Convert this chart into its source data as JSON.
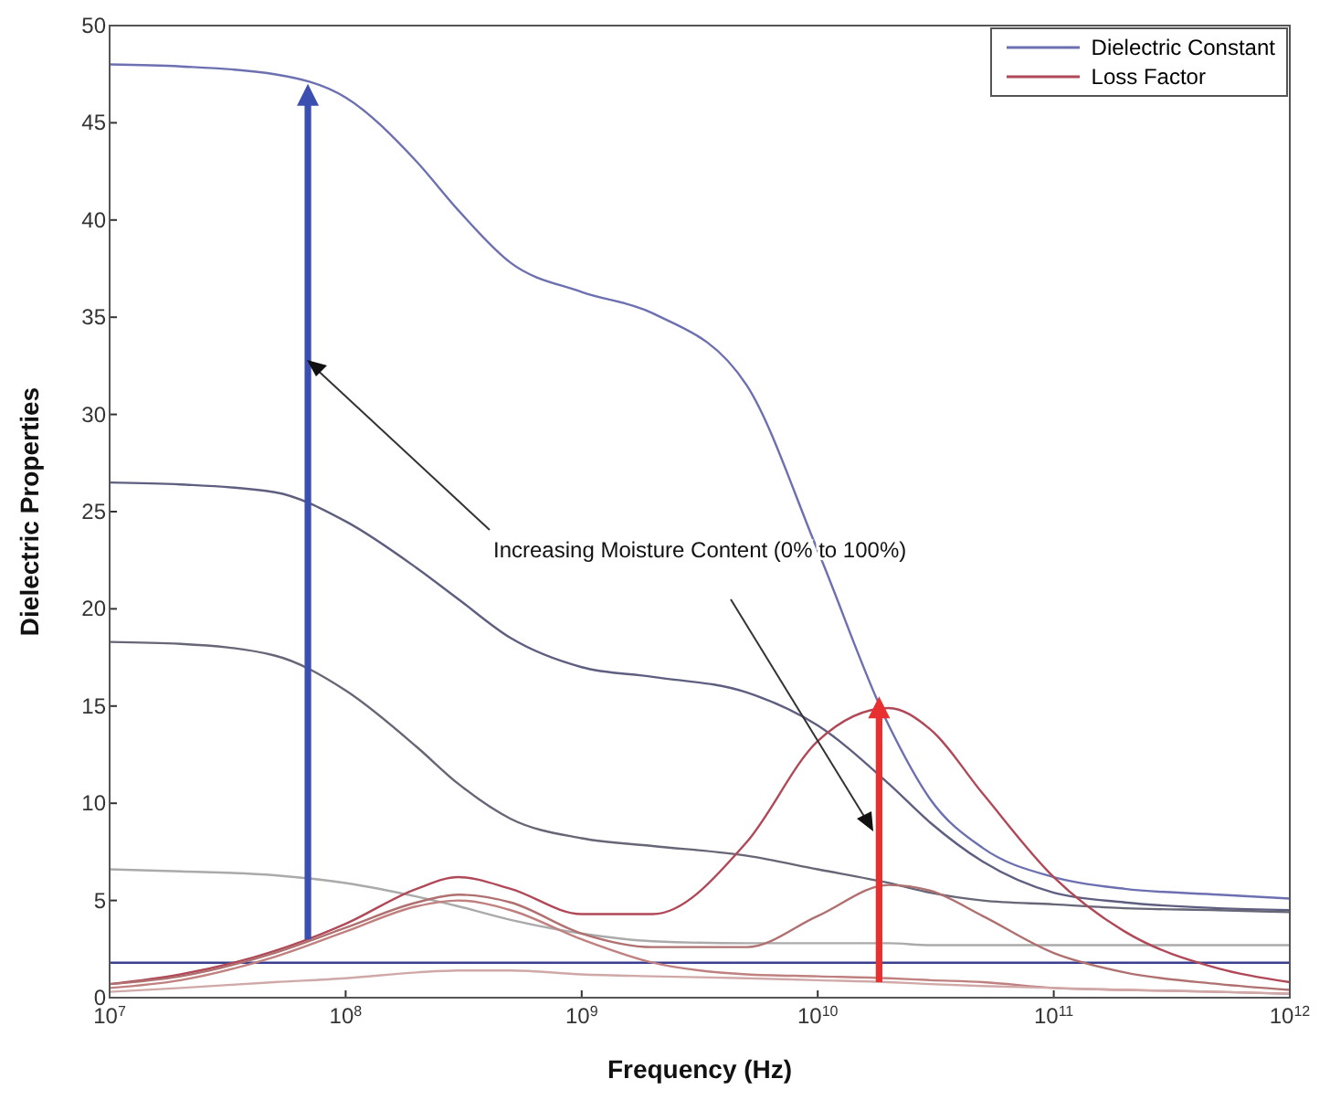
{
  "chart_data": {
    "type": "line",
    "xlabel": "Frequency (Hz)",
    "ylabel": "Dielectric Properties",
    "x": [
      10000000,
      20000000,
      50000000,
      100000000,
      200000000,
      300000000,
      500000000,
      1000000000,
      2000000000,
      5000000000,
      10000000000,
      20000000000,
      30000000000,
      50000000000,
      100000000000,
      200000000000,
      500000000000,
      1000000000000
    ],
    "series": [
      {
        "name": "Dielectric Constant",
        "color": "#6c70b0",
        "values": [
          48,
          47.9,
          47.5,
          46.3,
          43,
          40.5,
          37.8,
          36.3,
          35.2,
          31.5,
          23,
          14,
          10.2,
          7.7,
          6.2,
          5.6,
          5.3,
          5.1
        ]
      },
      {
        "color": "#5e5f80",
        "values": [
          26.5,
          26.4,
          26,
          24.5,
          22.1,
          20.5,
          18.5,
          17,
          16.5,
          15.7,
          14,
          11,
          9,
          7,
          5.4,
          4.9,
          4.6,
          4.5
        ]
      },
      {
        "color": "#666677",
        "values": [
          18.3,
          18.2,
          17.6,
          15.8,
          12.9,
          11,
          9.2,
          8.2,
          7.8,
          7.3,
          6.6,
          5.9,
          5.4,
          5,
          4.8,
          4.6,
          4.5,
          4.4
        ]
      },
      {
        "color": "#aaaaaa",
        "values": [
          6.6,
          6.5,
          6.3,
          5.9,
          5.2,
          4.7,
          4,
          3.3,
          2.9,
          2.8,
          2.8,
          2.8,
          2.7,
          2.7,
          2.7,
          2.7,
          2.7,
          2.7
        ]
      },
      {
        "color": "#3a3f90",
        "values": [
          1.8,
          1.8,
          1.8,
          1.8,
          1.8,
          1.8,
          1.8,
          1.8,
          1.8,
          1.8,
          1.8,
          1.8,
          1.8,
          1.8,
          1.8,
          1.8,
          1.8,
          1.8
        ]
      },
      {
        "name": "Loss Factor",
        "color": "#b04858",
        "values": [
          0.7,
          1.2,
          2.4,
          3.8,
          5.6,
          6.2,
          5.6,
          4.3,
          4.3,
          8,
          13.2,
          14.9,
          13.8,
          10.5,
          6.2,
          3.4,
          1.5,
          0.8
        ]
      },
      {
        "color": "#b07070",
        "values": [
          0.7,
          1.1,
          2.3,
          3.6,
          4.9,
          5.3,
          4.9,
          3.3,
          2.6,
          2.6,
          4.2,
          5.8,
          5.5,
          4.2,
          2.3,
          1.3,
          0.7,
          0.4
        ]
      },
      {
        "color": "#c08080",
        "values": [
          0.5,
          0.9,
          2.1,
          3.4,
          4.7,
          5,
          4.5,
          3,
          1.8,
          1.2,
          1.1,
          1,
          0.9,
          0.8,
          0.5,
          0.4,
          0.3,
          0.2
        ]
      },
      {
        "color": "#d0a8a8",
        "values": [
          0.3,
          0.5,
          0.8,
          1,
          1.3,
          1.4,
          1.4,
          1.2,
          1.1,
          1,
          0.9,
          0.8,
          0.7,
          0.6,
          0.5,
          0.4,
          0.3,
          0.2
        ]
      }
    ],
    "log": "x",
    "xlim": [
      10000000,
      1000000000000
    ],
    "xticks": [
      {
        "value": 10000000,
        "label": "10$^{7}$"
      },
      {
        "value": 100000000,
        "label": "10$^{8}$"
      },
      {
        "value": 1000000000,
        "label": "10$^{9}$"
      },
      {
        "value": 10000000000,
        "label": "10$^{10}$"
      },
      {
        "value": 100000000000,
        "label": "10$^{11}$"
      },
      {
        "value": 1000000000000,
        "label": "10$^{12}$"
      }
    ],
    "ylim": [
      0,
      50
    ],
    "yticks": [
      0,
      5,
      10,
      15,
      20,
      25,
      30,
      35,
      40,
      45,
      50
    ],
    "grid": false,
    "legend": "top right",
    "marker": "none",
    "line_style": "solid",
    "annotations": [
      "Increasing Moisture Content (0% to 100%)"
    ]
  }
}
